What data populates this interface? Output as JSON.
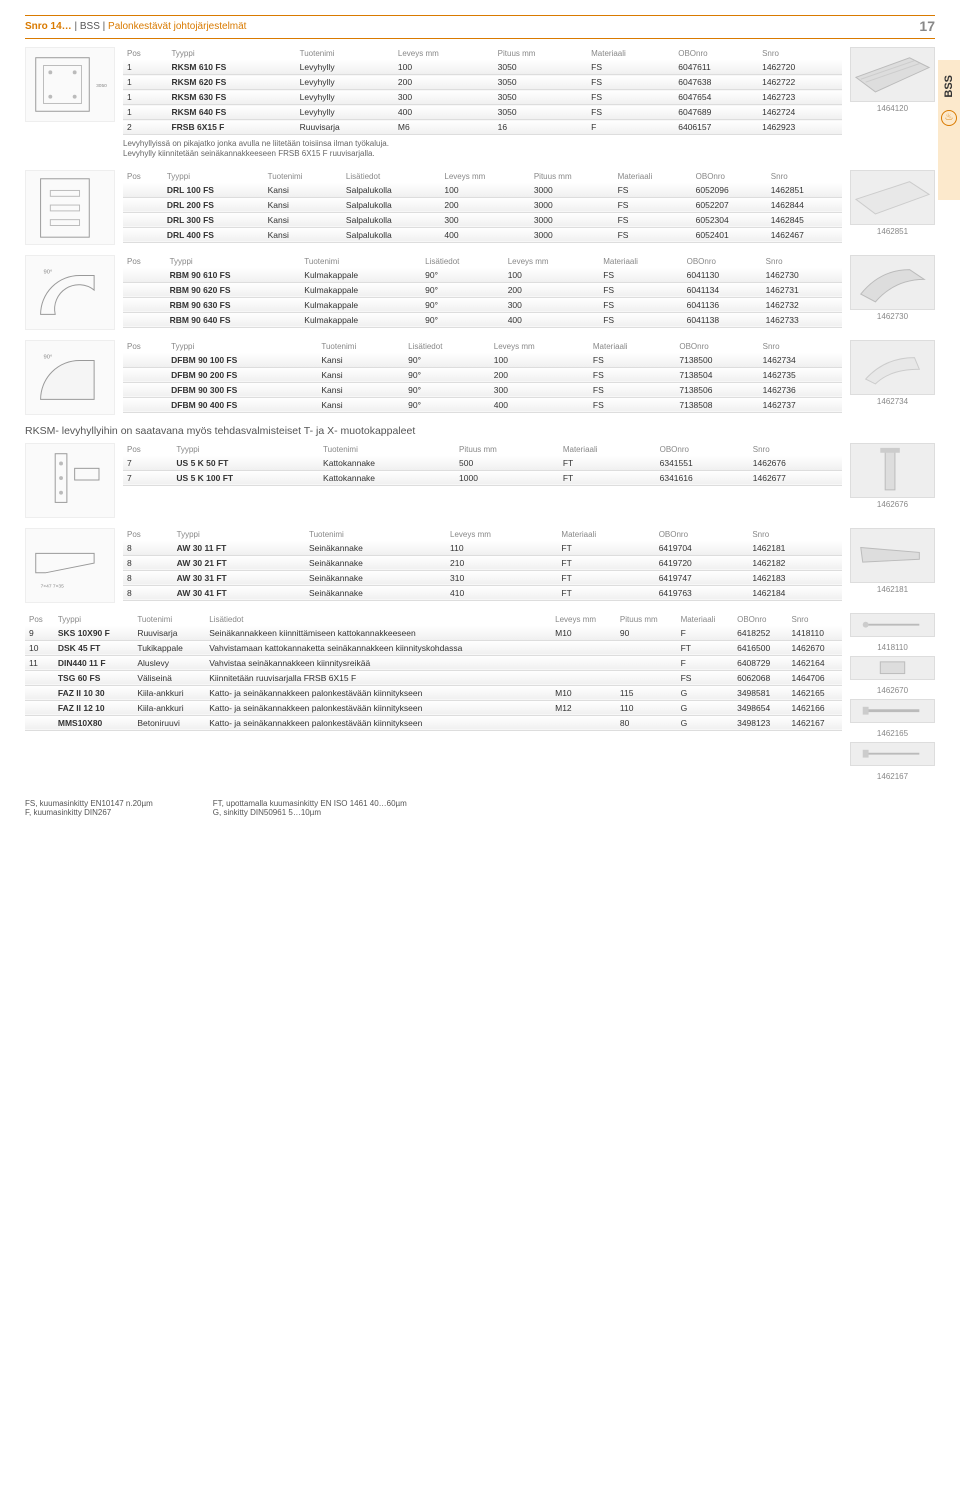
{
  "header": {
    "breadcrumb_1": "Snro 14…",
    "sep": " | ",
    "breadcrumb_2": "BSS",
    "breadcrumb_3": "Palonkestävät johtojärjestelmät",
    "page": "17"
  },
  "sidetab": {
    "label": "BSS"
  },
  "t1": {
    "headers": [
      "Pos",
      "Tyyppi",
      "Tuotenimi",
      "Leveys mm",
      "Pituus mm",
      "Materiaali",
      "OBOnro",
      "Snro"
    ],
    "rows": [
      [
        "1",
        "RKSM 610 FS",
        "Levyhylly",
        "100",
        "3050",
        "FS",
        "6047611",
        "1462720"
      ],
      [
        "1",
        "RKSM 620 FS",
        "Levyhylly",
        "200",
        "3050",
        "FS",
        "6047638",
        "1462722"
      ],
      [
        "1",
        "RKSM 630 FS",
        "Levyhylly",
        "300",
        "3050",
        "FS",
        "6047654",
        "1462723"
      ],
      [
        "1",
        "RKSM 640 FS",
        "Levyhylly",
        "400",
        "3050",
        "FS",
        "6047689",
        "1462724"
      ],
      [
        "2",
        "FRSB 6X15 F",
        "Ruuvisarja",
        "M6",
        "16",
        "F",
        "6406157",
        "1462923"
      ]
    ],
    "note": "Levyhyllyissä on pikajatko jonka avulla ne liitetään toisiinsa ilman työkaluja.\nLevyhylly kiinnitetään seinäkannakkeeseen FRSB 6X15 F ruuvisarjalla.",
    "photo_label": "1464120"
  },
  "t2": {
    "headers": [
      "Pos",
      "Tyyppi",
      "Tuotenimi",
      "Lisätiedot",
      "Leveys mm",
      "Pituus mm",
      "Materiaali",
      "OBOnro",
      "Snro"
    ],
    "rows": [
      [
        "",
        "DRL 100 FS",
        "Kansi",
        "Salpalukolla",
        "100",
        "3000",
        "FS",
        "6052096",
        "1462851"
      ],
      [
        "",
        "DRL 200 FS",
        "Kansi",
        "Salpalukolla",
        "200",
        "3000",
        "FS",
        "6052207",
        "1462844"
      ],
      [
        "",
        "DRL 300 FS",
        "Kansi",
        "Salpalukolla",
        "300",
        "3000",
        "FS",
        "6052304",
        "1462845"
      ],
      [
        "",
        "DRL 400 FS",
        "Kansi",
        "Salpalukolla",
        "400",
        "3000",
        "FS",
        "6052401",
        "1462467"
      ]
    ],
    "photo_label": "1462851"
  },
  "t3": {
    "headers": [
      "Pos",
      "Tyyppi",
      "Tuotenimi",
      "Lisätiedot",
      "Leveys mm",
      "Materiaali",
      "OBOnro",
      "Snro"
    ],
    "rows": [
      [
        "",
        "RBM 90 610 FS",
        "Kulmakappale",
        "90°",
        "100",
        "FS",
        "6041130",
        "1462730"
      ],
      [
        "",
        "RBM 90 620 FS",
        "Kulmakappale",
        "90°",
        "200",
        "FS",
        "6041134",
        "1462731"
      ],
      [
        "",
        "RBM 90 630 FS",
        "Kulmakappale",
        "90°",
        "300",
        "FS",
        "6041136",
        "1462732"
      ],
      [
        "",
        "RBM 90 640 FS",
        "Kulmakappale",
        "90°",
        "400",
        "FS",
        "6041138",
        "1462733"
      ]
    ],
    "photo_label": "1462730"
  },
  "t4": {
    "headers": [
      "Pos",
      "Tyyppi",
      "Tuotenimi",
      "Lisätiedot",
      "Leveys mm",
      "Materiaali",
      "OBOnro",
      "Snro"
    ],
    "rows": [
      [
        "",
        "DFBM 90 100 FS",
        "Kansi",
        "90°",
        "100",
        "FS",
        "7138500",
        "1462734"
      ],
      [
        "",
        "DFBM 90 200 FS",
        "Kansi",
        "90°",
        "200",
        "FS",
        "7138504",
        "1462735"
      ],
      [
        "",
        "DFBM 90 300 FS",
        "Kansi",
        "90°",
        "300",
        "FS",
        "7138506",
        "1462736"
      ],
      [
        "",
        "DFBM 90 400 FS",
        "Kansi",
        "90°",
        "400",
        "FS",
        "7138508",
        "1462737"
      ]
    ],
    "photo_label": "1462734"
  },
  "subheading": "RKSM- levyhyllyihin on saatavana myös tehdasvalmisteiset T- ja X- muotokappaleet",
  "t5": {
    "headers": [
      "Pos",
      "Tyyppi",
      "Tuotenimi",
      "Pituus mm",
      "Materiaali",
      "OBOnro",
      "Snro"
    ],
    "rows": [
      [
        "7",
        "US 5 K 50 FT",
        "Kattokannake",
        "500",
        "FT",
        "6341551",
        "1462676"
      ],
      [
        "7",
        "US 5 K 100 FT",
        "Kattokannake",
        "1000",
        "FT",
        "6341616",
        "1462677"
      ]
    ],
    "photo_label": "1462676"
  },
  "t6": {
    "headers": [
      "Pos",
      "Tyyppi",
      "Tuotenimi",
      "Leveys mm",
      "Materiaali",
      "OBOnro",
      "Snro"
    ],
    "rows": [
      [
        "8",
        "AW 30 11 FT",
        "Seinäkannake",
        "110",
        "FT",
        "6419704",
        "1462181"
      ],
      [
        "8",
        "AW 30 21 FT",
        "Seinäkannake",
        "210",
        "FT",
        "6419720",
        "1462182"
      ],
      [
        "8",
        "AW 30 31 FT",
        "Seinäkannake",
        "310",
        "FT",
        "6419747",
        "1462183"
      ],
      [
        "8",
        "AW 30 41 FT",
        "Seinäkannake",
        "410",
        "FT",
        "6419763",
        "1462184"
      ]
    ],
    "photo_label": "1462181"
  },
  "t7": {
    "headers": [
      "Pos",
      "Tyyppi",
      "Tuotenimi",
      "Lisätiedot",
      "Leveys mm",
      "Pituus mm",
      "Materiaali",
      "OBOnro",
      "Snro"
    ],
    "rows": [
      [
        "9",
        "SKS 10X90 F",
        "Ruuvisarja",
        "Seinäkannakkeen kiinnittämiseen kattokannakkeeseen",
        "M10",
        "90",
        "F",
        "6418252",
        "1418110"
      ],
      [
        "10",
        "DSK 45 FT",
        "Tukikappale",
        "Vahvistamaan kattokannaketta seinäkannakkeen kiinnityskohdassa",
        "",
        "",
        "FT",
        "6416500",
        "1462670"
      ],
      [
        "11",
        "DIN440 11 F",
        "Aluslevy",
        "Vahvistaa seinäkannakkeen kiinnitysreikää",
        "",
        "",
        "F",
        "6408729",
        "1462164"
      ],
      [
        "",
        "TSG 60 FS",
        "Väliseinä",
        "Kiinnitetään ruuvisarjalla FRSB 6X15 F",
        "",
        "",
        "FS",
        "6062068",
        "1464706"
      ],
      [
        "",
        "FAZ II 10 30",
        "Kiila-ankkuri",
        "Katto- ja seinäkannakkeen palonkestävään kiinnitykseen",
        "M10",
        "115",
        "G",
        "3498581",
        "1462165"
      ],
      [
        "",
        "FAZ II 12 10",
        "Kiila-ankkuri",
        "Katto- ja seinäkannakkeen palonkestävään kiinnitykseen",
        "M12",
        "110",
        "G",
        "3498654",
        "1462166"
      ],
      [
        "",
        "MMS10X80",
        "Betoniruuvi",
        "Katto- ja seinäkannakkeen palonkestävään kiinnitykseen",
        "",
        "80",
        "G",
        "3498123",
        "1462167"
      ]
    ],
    "photo_labels": [
      "1418110",
      "1462670",
      "1462165",
      "1462167"
    ]
  },
  "footer": {
    "left": "FS, kuumasinkitty EN10147 n.20µm\nF, kuumasinkitty DIN267",
    "right": "FT, upottamalla kuumasinkitty EN ISO 1461 40…60µm\nG, sinkitty DIN50961 5…10µm"
  }
}
